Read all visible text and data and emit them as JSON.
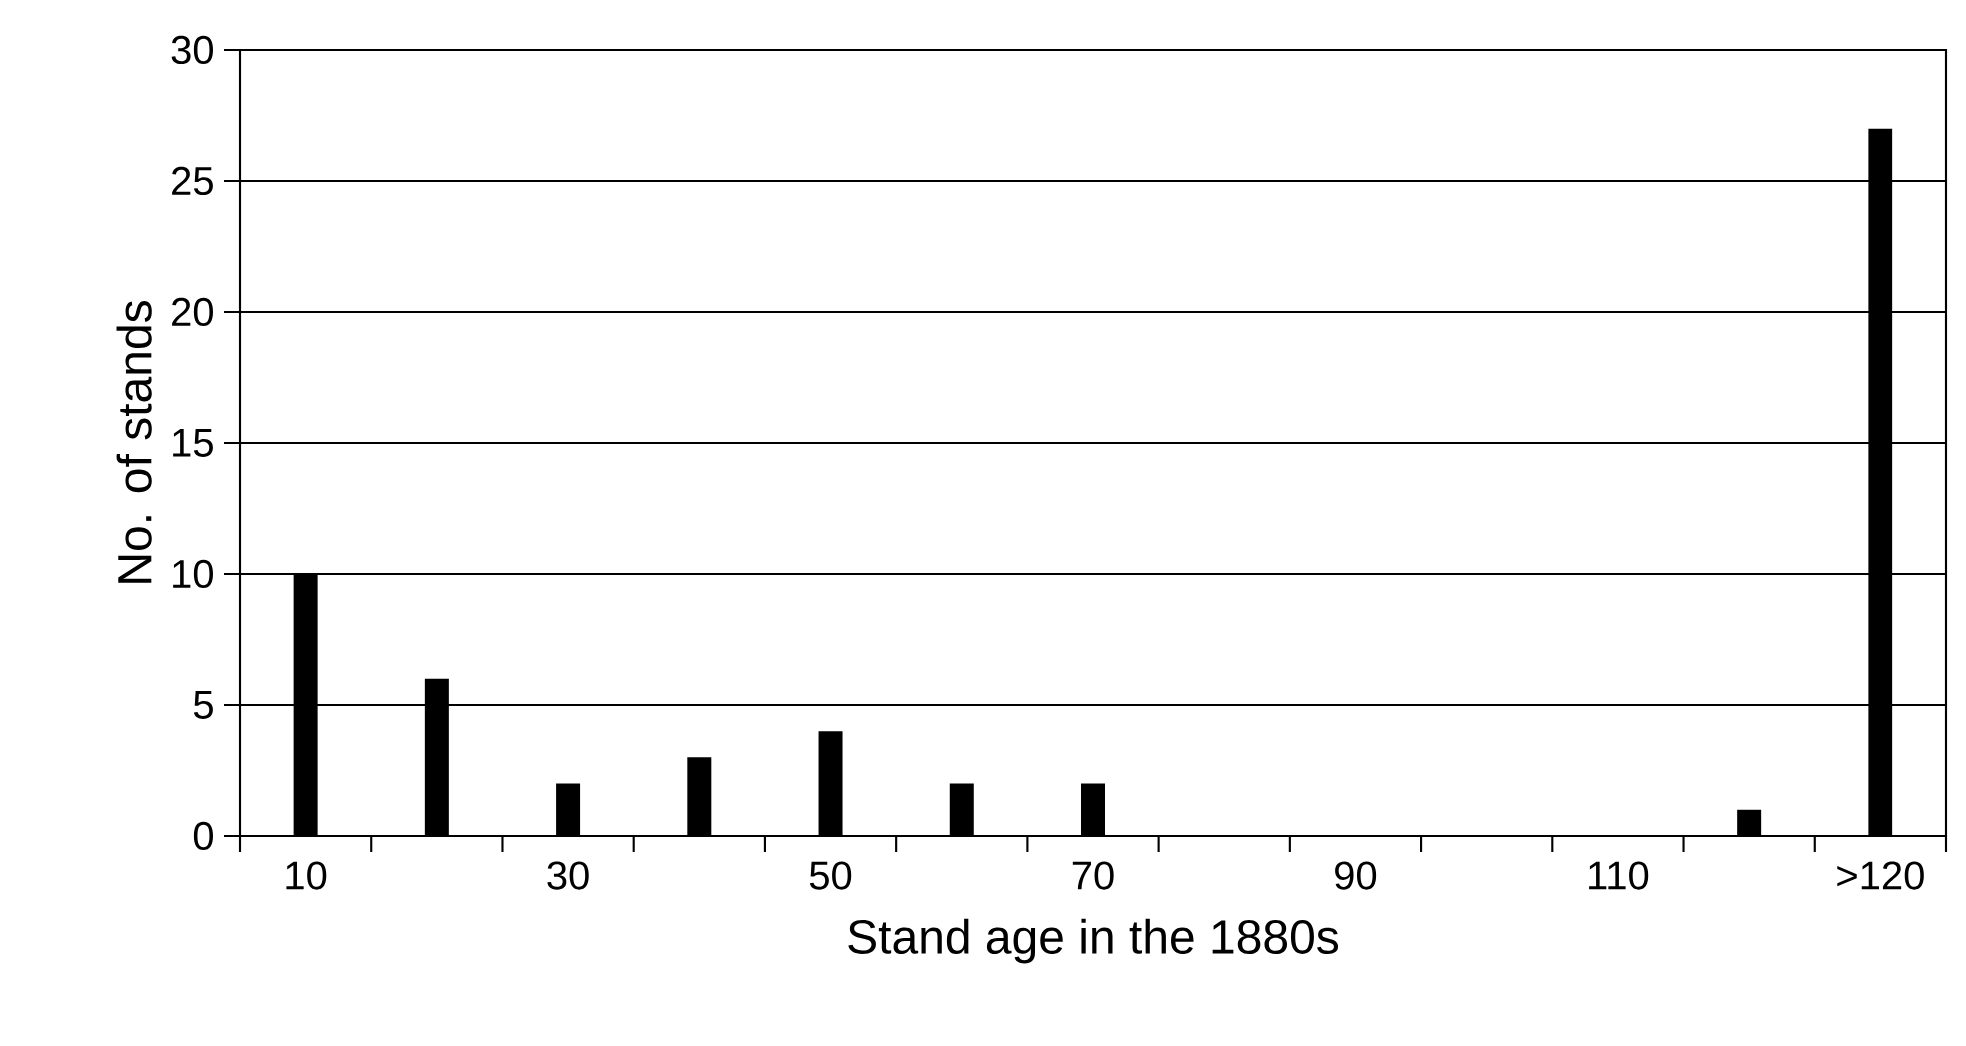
{
  "chart_data": {
    "type": "bar",
    "xlabel": "Stand age in the 1880s",
    "ylabel": "No. of stands",
    "categories": [
      "10",
      null,
      "30",
      null,
      "50",
      null,
      "70",
      null,
      "90",
      null,
      "110",
      null,
      ">120"
    ],
    "values": [
      10,
      6,
      2,
      3,
      4,
      2,
      2,
      0,
      0,
      0,
      0,
      1,
      27
    ],
    "color": "#000000",
    "ylim": [
      0,
      30
    ],
    "yticks": [
      0,
      5,
      10,
      15,
      20,
      25,
      30
    ],
    "grid": "y"
  }
}
